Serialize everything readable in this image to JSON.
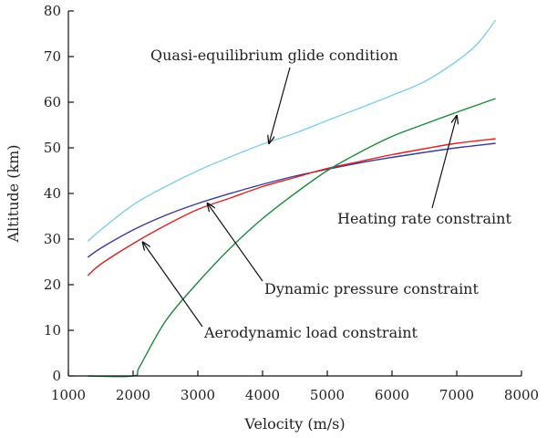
{
  "chart_data": {
    "type": "line",
    "xlabel": "Velocity (m/s)",
    "ylabel": "Altitude (km)",
    "xlim": [
      1000,
      8000
    ],
    "ylim": [
      0,
      80
    ],
    "xticks": [
      1000,
      2000,
      3000,
      4000,
      5000,
      6000,
      7000,
      8000
    ],
    "yticks": [
      0,
      10,
      20,
      30,
      40,
      50,
      60,
      70,
      80
    ],
    "grid": false,
    "legend": "none",
    "series": [
      {
        "name": "Quasi-equilibrium glide condition",
        "color": "#7fd0e8",
        "x": [
          1300,
          1500,
          2000,
          2500,
          3000,
          3500,
          4000,
          4500,
          5000,
          5500,
          6000,
          6500,
          7000,
          7300,
          7500,
          7600
        ],
        "y": [
          29.5,
          32.0,
          37.5,
          41.5,
          45.0,
          48.0,
          50.8,
          53.2,
          56.0,
          58.7,
          61.5,
          64.5,
          69.0,
          72.5,
          76.0,
          78.0
        ]
      },
      {
        "name": "Dynamic pressure constraint",
        "color": "#3a3a9a",
        "x": [
          1300,
          1500,
          2000,
          2500,
          3000,
          3500,
          4000,
          4500,
          5000,
          5500,
          6000,
          6500,
          7000,
          7600
        ],
        "y": [
          26.0,
          28.0,
          32.0,
          35.2,
          37.8,
          40.0,
          42.0,
          43.8,
          45.3,
          46.7,
          47.9,
          49.0,
          50.0,
          51.0
        ]
      },
      {
        "name": "Aerodynamic load constraint",
        "color": "#e02020",
        "x": [
          1300,
          1500,
          2000,
          2500,
          3000,
          3500,
          4000,
          4500,
          5000,
          5500,
          6000,
          6500,
          7000,
          7600
        ],
        "y": [
          22.0,
          24.5,
          29.0,
          33.0,
          36.5,
          39.0,
          41.5,
          43.5,
          45.5,
          47.0,
          48.5,
          49.8,
          51.0,
          52.0
        ]
      },
      {
        "name": "Heating rate constraint",
        "color": "#1a8a3a",
        "x": [
          1300,
          2000,
          2100,
          2500,
          3000,
          3500,
          4000,
          4500,
          5000,
          5500,
          6000,
          6500,
          7000,
          7600
        ],
        "y": [
          0.0,
          0.0,
          2.0,
          12.0,
          20.5,
          28.0,
          34.5,
          40.0,
          45.0,
          49.0,
          52.5,
          55.2,
          57.8,
          60.8
        ]
      }
    ],
    "annotations": [
      {
        "text": "Quasi-equilibrium glide condition",
        "series": "Quasi-equilibrium glide condition",
        "point": [
          4100,
          51.0
        ]
      },
      {
        "text": "Heating rate constraint",
        "series": "Heating rate constraint",
        "point": [
          7000,
          57.0
        ]
      },
      {
        "text": "Dynamic pressure constraint",
        "series": "Dynamic pressure constraint",
        "point": [
          3150,
          37.8
        ]
      },
      {
        "text": "Aerodynamic load constraint",
        "series": "Aerodynamic load constraint",
        "point": [
          2150,
          29.3
        ]
      }
    ]
  }
}
